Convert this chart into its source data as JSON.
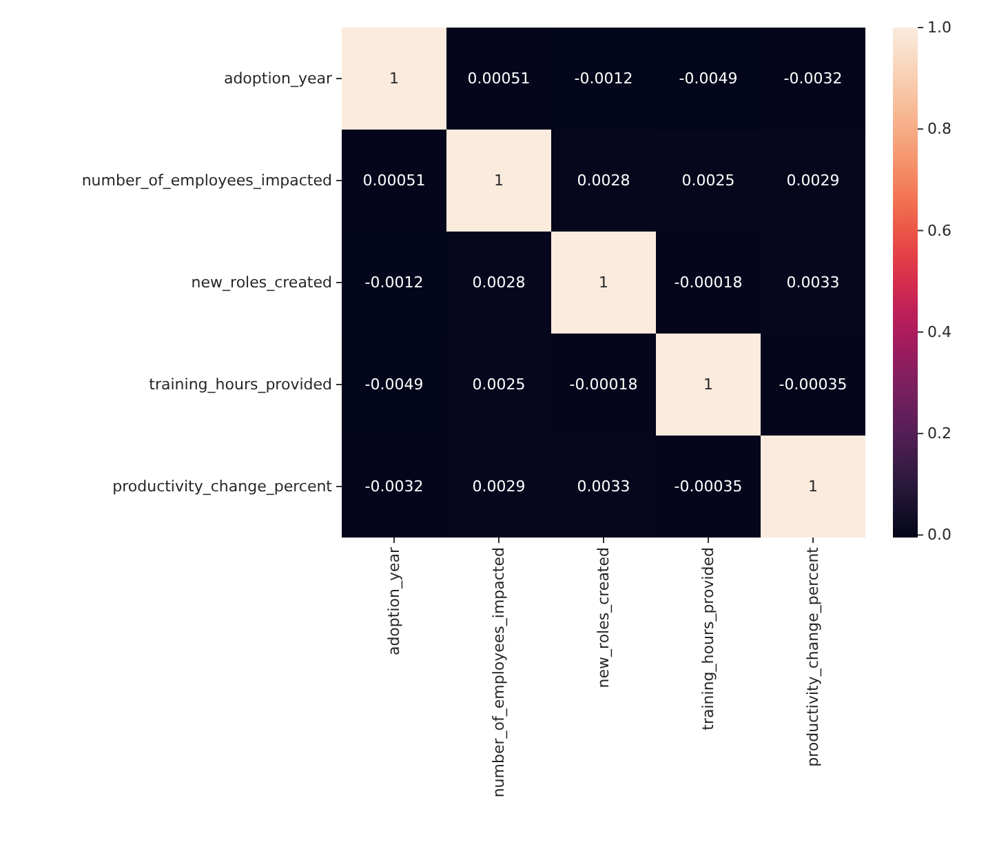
{
  "chart_data": {
    "type": "heatmap",
    "categories": [
      "adoption_year",
      "number_of_employees_impacted",
      "new_roles_created",
      "training_hours_provided",
      "productivity_change_percent"
    ],
    "y_categories": [
      "adoption_year",
      "number_of_employees_impacted",
      "new_roles_created",
      "training_hours_provided",
      "productivity_change_percent"
    ],
    "cells": [
      [
        1,
        0.00051,
        -0.0012,
        -0.0049,
        -0.0032
      ],
      [
        0.00051,
        1,
        0.0028,
        0.0025,
        0.0029
      ],
      [
        -0.0012,
        0.0028,
        1,
        -0.00018,
        0.0033
      ],
      [
        -0.0049,
        0.0025,
        -0.00018,
        1,
        -0.00035
      ],
      [
        -0.0032,
        0.0029,
        0.0033,
        -0.00035,
        1
      ]
    ],
    "clim": [
      -0.0049,
      1
    ],
    "cticks": [
      {
        "value": 0,
        "label": "0.0"
      },
      {
        "value": 0.2,
        "label": "0.2"
      },
      {
        "value": 0.4,
        "label": "0.4"
      },
      {
        "value": 0.6,
        "label": "0.6"
      },
      {
        "value": 0.8,
        "label": "0.8"
      },
      {
        "value": 1,
        "label": "1.0"
      }
    ],
    "data_labels": true
  }
}
